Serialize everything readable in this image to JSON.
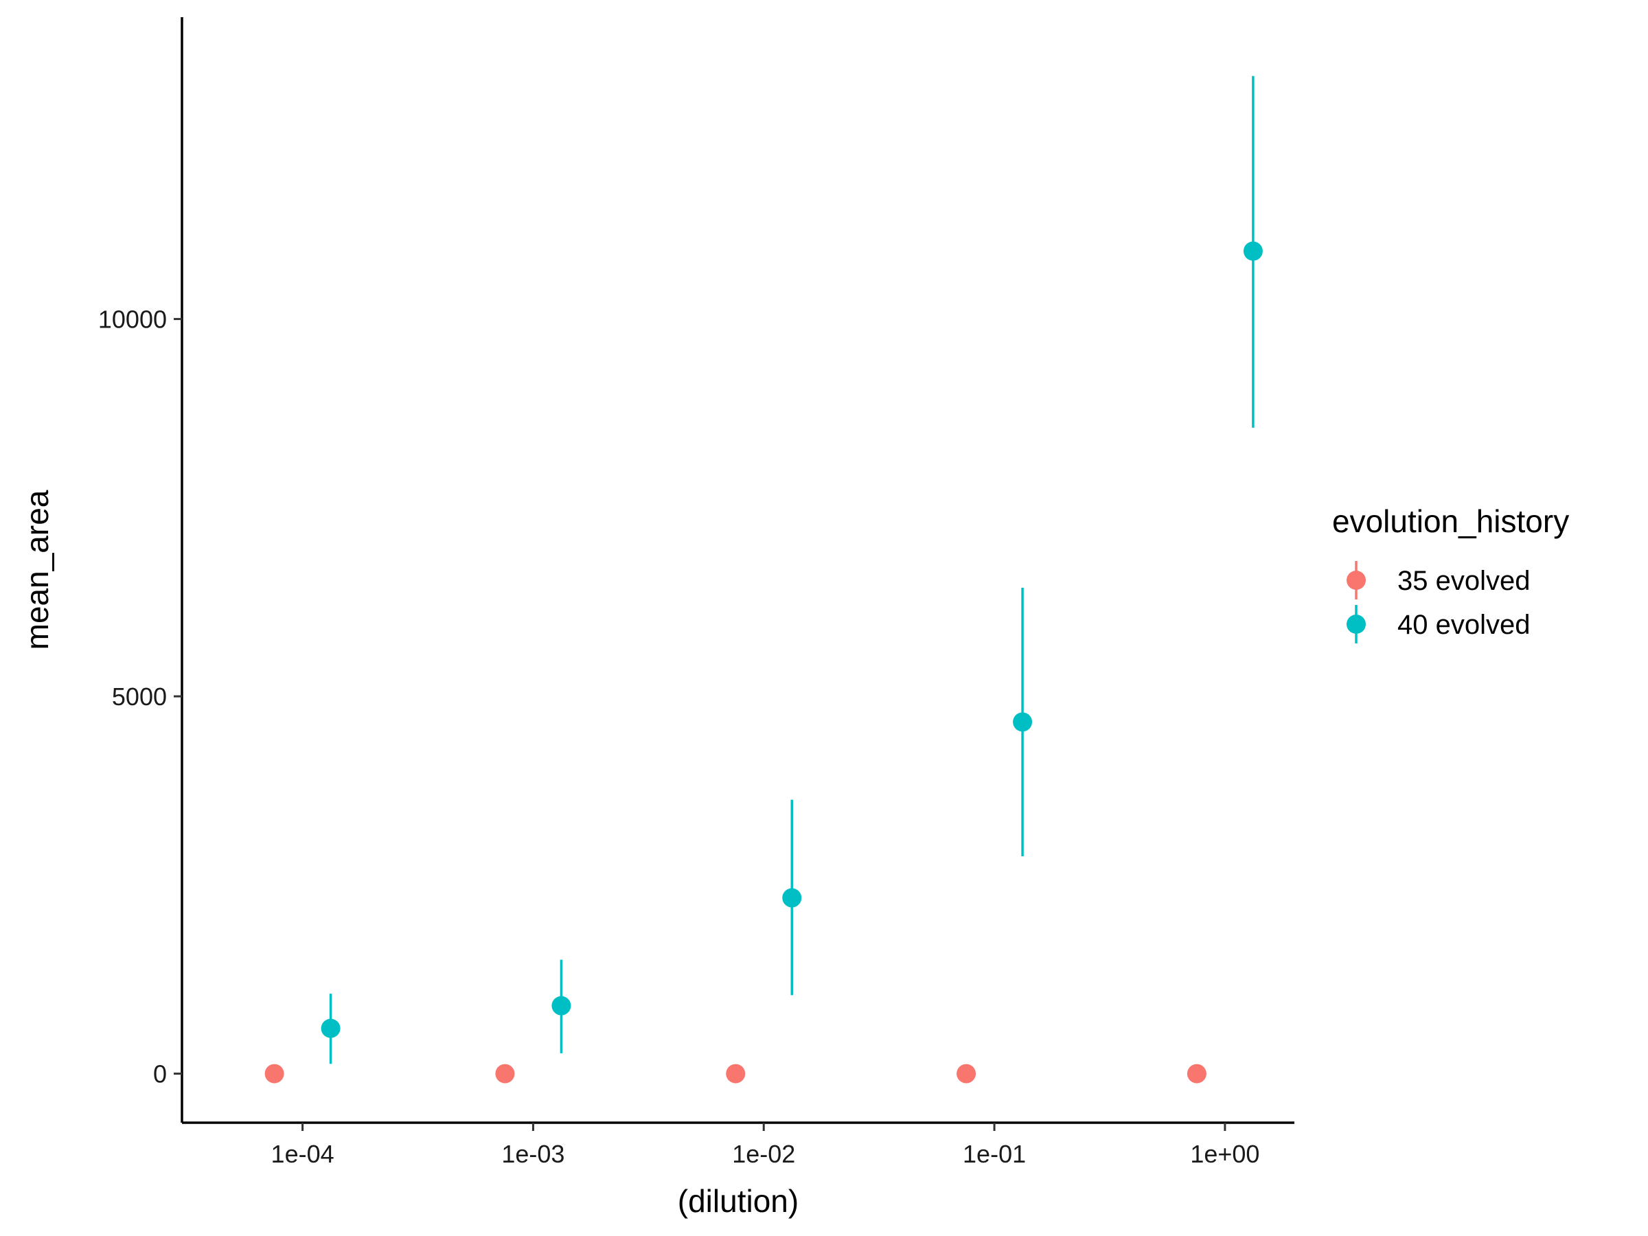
{
  "chart_data": {
    "type": "scatter",
    "xlabel": "(dilution)",
    "ylabel": "mean_area",
    "x_scale": "log10",
    "x_ticks": [
      0.0001,
      0.001,
      0.01,
      0.1,
      1
    ],
    "x_tick_labels": [
      "1e-04",
      "1e-03",
      "1e-02",
      "1e-01",
      "1e+00"
    ],
    "xlim": [
      3e-05,
      2
    ],
    "y_ticks": [
      0,
      5000,
      10000
    ],
    "y_tick_labels": [
      "0",
      "5000",
      "10000"
    ],
    "ylim": [
      -650,
      14000
    ],
    "grid": false,
    "error_bars": true,
    "legend": {
      "title": "evolution_history",
      "position": "right"
    },
    "series": [
      {
        "name": "35 evolved",
        "color": "#F8766D",
        "points": [
          {
            "x": 0.0001,
            "y": 0,
            "ymin": 0,
            "ymax": 0
          },
          {
            "x": 0.001,
            "y": 0,
            "ymin": 0,
            "ymax": 0
          },
          {
            "x": 0.01,
            "y": 0,
            "ymin": 0,
            "ymax": 0
          },
          {
            "x": 0.1,
            "y": 0,
            "ymin": 0,
            "ymax": 0
          },
          {
            "x": 1,
            "y": 0,
            "ymin": 0,
            "ymax": 0
          }
        ]
      },
      {
        "name": "40 evolved",
        "color": "#00BFC4",
        "points": [
          {
            "x": 0.0001,
            "y": 600,
            "ymin": 130,
            "ymax": 1060
          },
          {
            "x": 0.001,
            "y": 900,
            "ymin": 270,
            "ymax": 1510
          },
          {
            "x": 0.01,
            "y": 2330,
            "ymin": 1040,
            "ymax": 3630
          },
          {
            "x": 0.1,
            "y": 4660,
            "ymin": 2880,
            "ymax": 6440
          },
          {
            "x": 1,
            "y": 10900,
            "ymin": 8560,
            "ymax": 13220
          }
        ]
      }
    ]
  }
}
